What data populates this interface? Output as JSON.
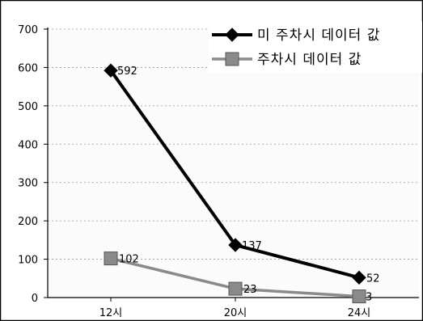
{
  "chart_data": {
    "type": "line",
    "categories": [
      "12시",
      "20시",
      "24시"
    ],
    "ylim": [
      0,
      700
    ],
    "yticks": [
      0,
      100,
      200,
      300,
      400,
      500,
      600,
      700
    ],
    "grid": true,
    "legend_position": "top-right",
    "series": [
      {
        "name": "미 주차시 데이터 값",
        "values": [
          592,
          137,
          52
        ],
        "color": "#000000",
        "marker": "diamond"
      },
      {
        "name": "주차시 데이터 값",
        "values": [
          102,
          23,
          3
        ],
        "color": "#7a7a7a",
        "marker": "square"
      }
    ]
  }
}
